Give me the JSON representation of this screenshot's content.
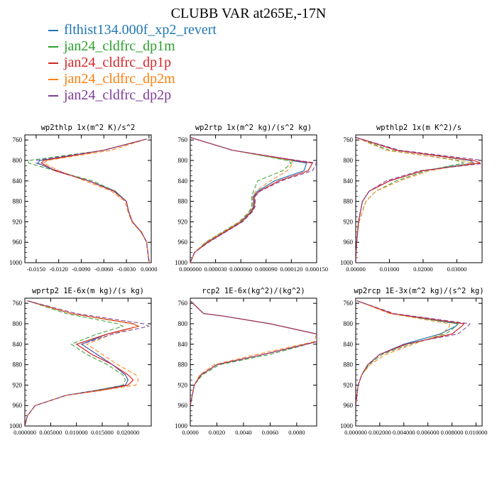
{
  "figure": {
    "title": "CLUBB VAR at265E,-17N"
  },
  "legend": [
    {
      "label": "flthist134.000f_xp2_revert",
      "color": "#1f77b4"
    },
    {
      "label": "jan24_cldfrc_dp1m",
      "color": "#2ca02c"
    },
    {
      "label": "jan24_cldfrc_dp1p",
      "color": "#d62728"
    },
    {
      "label": "jan24_cldfrc_dp2m",
      "color": "#ff7f0e"
    },
    {
      "label": "jan24_cldfrc_dp2p",
      "color": "#7d3c98"
    }
  ],
  "chart_data": [
    {
      "type": "line",
      "title": "wp2thlp  1x(m^2 K)/s^2",
      "xlim": [
        -0.0165,
        0.0003
      ],
      "ylim": [
        1000,
        750
      ],
      "yticks": [
        "760",
        "800",
        "840",
        "880",
        "920",
        "960",
        "1000"
      ],
      "xticks": [
        -0.015,
        -0.012,
        -0.009,
        -0.006,
        -0.003,
        0.0
      ],
      "xtick_labels": [
        "-0.0150",
        "-0.0120",
        "-0.0090",
        "-0.0060",
        "-0.0030",
        "0.0000"
      ],
      "y": [
        758,
        780,
        800,
        805,
        820,
        840,
        860,
        880,
        900,
        920,
        940,
        960,
        1000
      ],
      "series": [
        {
          "values": [
            -0.0003,
            -0.006,
            -0.0145,
            -0.0148,
            -0.0125,
            -0.008,
            -0.0045,
            -0.003,
            -0.0027,
            -0.0022,
            -0.001,
            -0.0003,
            0.0
          ]
        },
        {
          "values": [
            -0.0003,
            -0.006,
            -0.016,
            -0.016,
            -0.0125,
            -0.0075,
            -0.0045,
            -0.003,
            -0.0027,
            -0.0022,
            -0.001,
            -0.0003,
            0.0
          ]
        },
        {
          "values": [
            -0.0003,
            -0.006,
            -0.014,
            -0.0143,
            -0.0125,
            -0.008,
            -0.0047,
            -0.003,
            -0.0027,
            -0.0022,
            -0.001,
            -0.0003,
            0.0
          ]
        },
        {
          "values": [
            -0.0003,
            -0.005,
            -0.0135,
            -0.014,
            -0.012,
            -0.0085,
            -0.005,
            -0.0032,
            -0.0028,
            -0.0023,
            -0.0011,
            -0.0003,
            0.0
          ]
        },
        {
          "values": [
            -0.0003,
            -0.006,
            -0.015,
            -0.015,
            -0.0122,
            -0.008,
            -0.0046,
            -0.003,
            -0.0027,
            -0.0022,
            -0.001,
            -0.0003,
            0.0
          ]
        }
      ]
    },
    {
      "type": "line",
      "title": "wp2rtp  1x(m^2 kg)/(s^2 kg)",
      "xlim": [
        0.0,
        0.00015
      ],
      "ylim": [
        1000,
        750
      ],
      "yticks": [
        "760",
        "800",
        "840",
        "880",
        "920",
        "960",
        "1000"
      ],
      "xticks": [
        0.0,
        3e-05,
        6e-05,
        9e-05,
        0.00012,
        0.00015
      ],
      "xtick_labels": [
        "0.000000",
        "0.000030",
        "0.000060",
        "0.000090",
        "0.000120",
        "0.000150"
      ],
      "y": [
        755,
        780,
        800,
        805,
        820,
        840,
        860,
        870,
        880,
        890,
        900,
        920,
        940,
        960,
        980,
        1000
      ],
      "series": [
        {
          "values": [
            0.0,
            5e-05,
            0.00012,
            0.000138,
            0.000135,
            0.0001,
            8e-05,
            7.5e-05,
            7.5e-05,
            7.5e-05,
            7.2e-05,
            6e-05,
            4e-05,
            2e-05,
            5e-06,
            0.0
          ]
        },
        {
          "values": [
            0.0,
            5e-05,
            0.000115,
            0.00012,
            0.00011,
            8e-05,
            7.5e-05,
            7.3e-05,
            7.3e-05,
            7.3e-05,
            7e-05,
            5.8e-05,
            3.8e-05,
            1.8e-05,
            5e-06,
            0.0
          ]
        },
        {
          "values": [
            0.0,
            5e-05,
            0.000125,
            0.000145,
            0.00014,
            0.000105,
            8.2e-05,
            7.6e-05,
            7.6e-05,
            7.6e-05,
            7.3e-05,
            6.1e-05,
            4.1e-05,
            2.1e-05,
            5e-06,
            0.0
          ]
        },
        {
          "values": [
            0.0,
            5e-05,
            0.00012,
            0.000122,
            0.000115,
            9.5e-05,
            7.8e-05,
            7.4e-05,
            7.4e-05,
            7.4e-05,
            7.1e-05,
            5.9e-05,
            3.9e-05,
            1.9e-05,
            5e-06,
            0.0
          ]
        },
        {
          "values": [
            0.0,
            5e-05,
            0.000128,
            0.00015,
            0.000145,
            0.000108,
            8.3e-05,
            7.7e-05,
            7.7e-05,
            7.7e-05,
            7.4e-05,
            6.2e-05,
            4.2e-05,
            2.2e-05,
            5e-06,
            0.0
          ]
        }
      ]
    },
    {
      "type": "line",
      "title": "wpthlp2  1x(m K^2)/s",
      "xlim": [
        0.0,
        0.0375
      ],
      "ylim": [
        1000,
        750
      ],
      "yticks": [
        "760",
        "800",
        "840",
        "880",
        "920",
        "960",
        "1000"
      ],
      "xticks": [
        0.0,
        0.01,
        0.02,
        0.03
      ],
      "xtick_labels": [
        "0.00000",
        "0.01000",
        "0.02000",
        "0.03000"
      ],
      "y": [
        755,
        780,
        800,
        805,
        820,
        840,
        860,
        880,
        920,
        960,
        1000
      ],
      "series": [
        {
          "values": [
            0.0001,
            0.012,
            0.034,
            0.035,
            0.02,
            0.01,
            0.004,
            0.002,
            0.0008,
            0.0003,
            0.0
          ]
        },
        {
          "values": [
            0.0001,
            0.01,
            0.03,
            0.032,
            0.021,
            0.012,
            0.006,
            0.003,
            0.001,
            0.0003,
            0.0
          ]
        },
        {
          "values": [
            0.0001,
            0.012,
            0.035,
            0.037,
            0.02,
            0.01,
            0.004,
            0.002,
            0.0008,
            0.0003,
            0.0
          ]
        },
        {
          "values": [
            0.0001,
            0.009,
            0.031,
            0.035,
            0.022,
            0.013,
            0.006,
            0.003,
            0.001,
            0.0003,
            0.0
          ]
        },
        {
          "values": [
            0.0001,
            0.013,
            0.038,
            0.039,
            0.019,
            0.009,
            0.004,
            0.002,
            0.0008,
            0.0003,
            0.0
          ]
        }
      ]
    },
    {
      "type": "line",
      "title": "wprtp2  1E-6x(m kg)/(s kg)",
      "xlim": [
        0.0,
        0.0245
      ],
      "ylim": [
        1000,
        750
      ],
      "yticks": [
        "760",
        "800",
        "840",
        "880",
        "920",
        "960",
        "1000"
      ],
      "xticks": [
        0.0,
        0.005,
        0.01,
        0.015,
        0.02
      ],
      "xtick_labels": [
        "0.000000",
        "0.005000",
        "0.010000",
        "0.015000",
        "0.020000"
      ],
      "y": [
        755,
        780,
        800,
        805,
        820,
        840,
        860,
        880,
        900,
        910,
        920,
        930,
        940,
        960,
        980,
        1000
      ],
      "series": [
        {
          "values": [
            0.0005,
            0.009,
            0.021,
            0.022,
            0.016,
            0.011,
            0.014,
            0.017,
            0.0195,
            0.02,
            0.0195,
            0.014,
            0.008,
            0.002,
            0.0005,
            0.0
          ]
        },
        {
          "values": [
            0.0005,
            0.008,
            0.018,
            0.019,
            0.014,
            0.009,
            0.012,
            0.016,
            0.019,
            0.0195,
            0.019,
            0.014,
            0.008,
            0.002,
            0.0005,
            0.0
          ]
        },
        {
          "values": [
            0.0005,
            0.009,
            0.021,
            0.022,
            0.016,
            0.01,
            0.013,
            0.017,
            0.02,
            0.021,
            0.02,
            0.015,
            0.008,
            0.002,
            0.0005,
            0.0
          ]
        },
        {
          "values": [
            0.0005,
            0.009,
            0.021,
            0.022,
            0.017,
            0.012,
            0.015,
            0.018,
            0.0215,
            0.022,
            0.0215,
            0.015,
            0.008,
            0.002,
            0.0005,
            0.0
          ]
        },
        {
          "values": [
            0.0005,
            0.01,
            0.023,
            0.024,
            0.017,
            0.011,
            0.014,
            0.017,
            0.0195,
            0.02,
            0.0195,
            0.014,
            0.008,
            0.002,
            0.0005,
            0.0
          ]
        }
      ]
    },
    {
      "type": "line",
      "title": "rcp2  1E-6x(kg^2)/(kg^2)",
      "xlim": [
        0.0,
        0.0095
      ],
      "ylim": [
        1000,
        750
      ],
      "yticks": [
        "760",
        "800",
        "840",
        "880",
        "920",
        "960",
        "1000"
      ],
      "xticks": [
        0.0,
        0.002,
        0.004,
        0.006,
        0.008
      ],
      "xtick_labels": [
        "0.0000",
        "0.0020",
        "0.0040",
        "0.0060",
        "0.0080"
      ],
      "y": [
        755,
        780,
        785,
        800,
        820,
        835,
        860,
        880,
        900,
        920,
        960
      ],
      "series": [
        {
          "values": [
            0.0,
            0.001,
            0.0025,
            0.006,
            0.0095,
            0.0095,
            0.0055,
            0.002,
            0.0008,
            0.0003,
            0.0
          ]
        },
        {
          "values": [
            0.0,
            0.001,
            0.0025,
            0.006,
            0.0095,
            0.0095,
            0.006,
            0.0022,
            0.0009,
            0.0003,
            0.0
          ]
        },
        {
          "values": [
            0.0,
            0.001,
            0.0025,
            0.006,
            0.0095,
            0.0095,
            0.0055,
            0.002,
            0.0008,
            0.0003,
            0.0
          ]
        },
        {
          "values": [
            0.0,
            0.001,
            0.0025,
            0.006,
            0.0095,
            0.0093,
            0.005,
            0.0018,
            0.0007,
            0.0003,
            0.0
          ]
        },
        {
          "values": [
            0.0,
            0.001,
            0.0025,
            0.006,
            0.0095,
            0.0095,
            0.0055,
            0.002,
            0.0008,
            0.0003,
            0.0
          ]
        }
      ]
    },
    {
      "type": "line",
      "title": "wp2rcp  1E-3x(m^2 kg)/(s^2 kg)",
      "xlim": [
        0.0,
        0.0105
      ],
      "ylim": [
        1000,
        750
      ],
      "yticks": [
        "760",
        "800",
        "840",
        "880",
        "920",
        "960",
        "1000"
      ],
      "xticks": [
        0.0,
        0.002,
        0.004,
        0.006,
        0.008,
        0.01
      ],
      "xtick_labels": [
        "0.000000",
        "0.002000",
        "0.004000",
        "0.006000",
        "0.008000",
        "0.010000"
      ],
      "y": [
        755,
        780,
        800,
        805,
        820,
        840,
        860,
        880,
        900,
        920,
        960
      ],
      "series": [
        {
          "values": [
            0.0001,
            0.003,
            0.0085,
            0.0083,
            0.007,
            0.004,
            0.002,
            0.001,
            0.0005,
            0.0002,
            0.0
          ]
        },
        {
          "values": [
            0.0001,
            0.003,
            0.0085,
            0.0083,
            0.0075,
            0.0045,
            0.0022,
            0.0011,
            0.0005,
            0.0002,
            0.0
          ]
        },
        {
          "values": [
            0.0001,
            0.003,
            0.009,
            0.0088,
            0.008,
            0.0042,
            0.002,
            0.001,
            0.0005,
            0.0002,
            0.0
          ]
        },
        {
          "values": [
            0.0001,
            0.0028,
            0.0078,
            0.0078,
            0.0072,
            0.0048,
            0.0025,
            0.0012,
            0.0005,
            0.0002,
            0.0
          ]
        },
        {
          "values": [
            0.0001,
            0.0032,
            0.0095,
            0.0093,
            0.0085,
            0.004,
            0.002,
            0.001,
            0.0005,
            0.0002,
            0.0
          ]
        }
      ]
    }
  ]
}
